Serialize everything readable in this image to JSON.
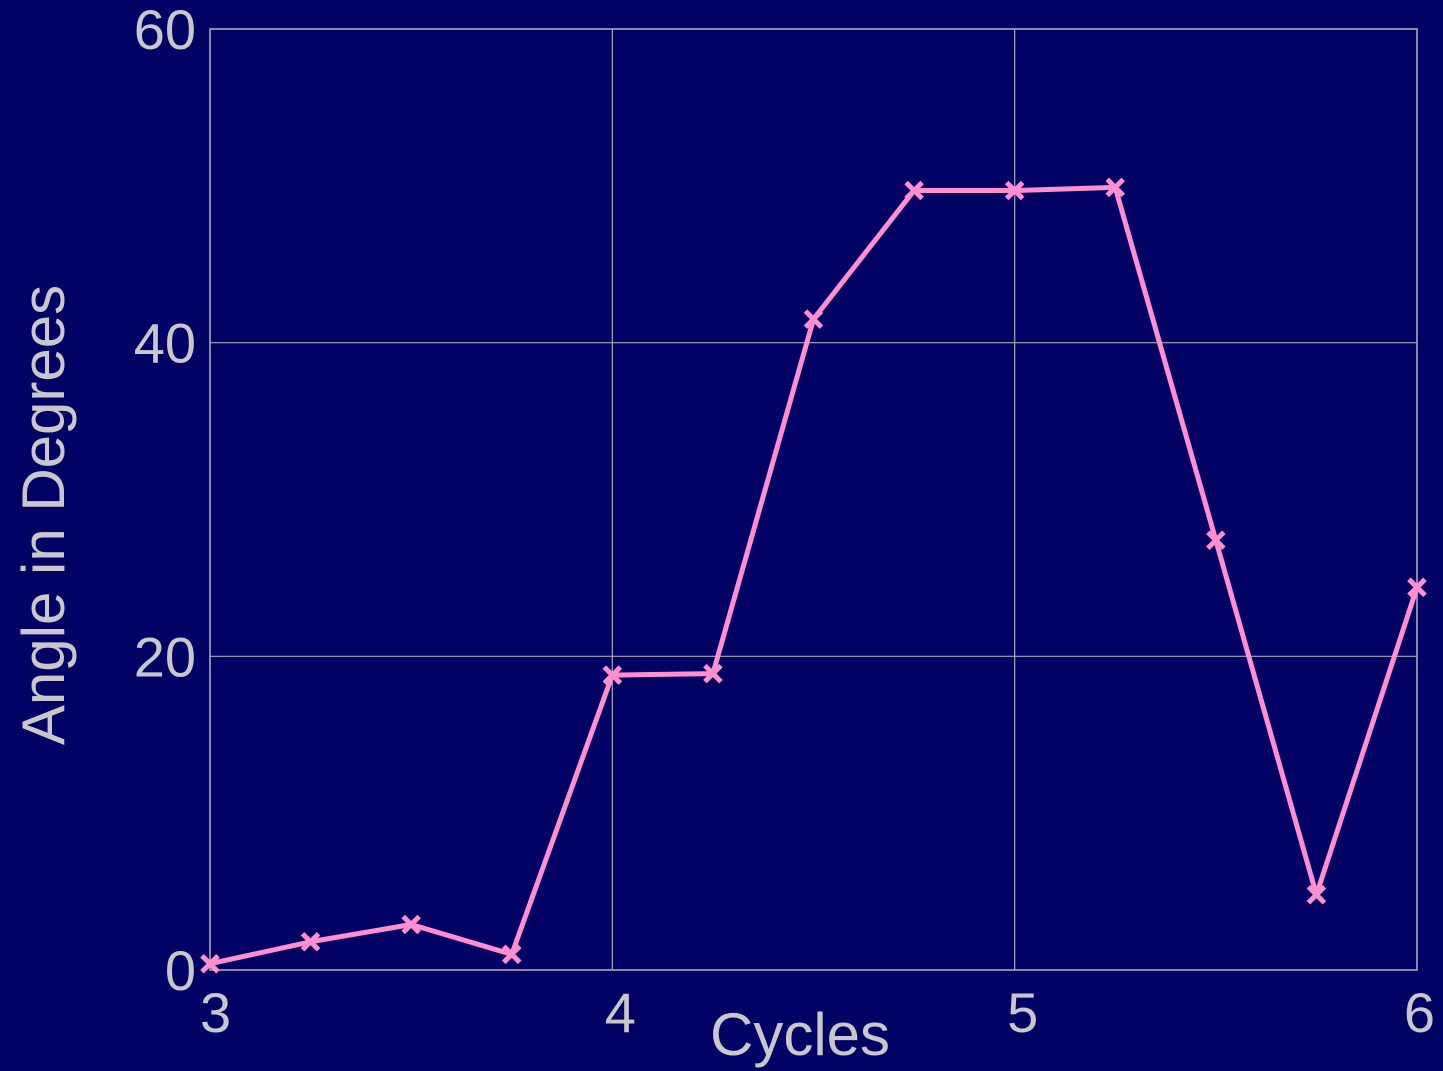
{
  "chart_data": {
    "type": "line",
    "x": [
      3,
      3.25,
      3.5,
      3.75,
      4,
      4.25,
      4.5,
      4.75,
      5,
      5.25,
      5.5,
      5.75,
      6
    ],
    "values": [
      0.4,
      1.8,
      2.9,
      1.0,
      18.8,
      18.9,
      41.5,
      49.7,
      49.7,
      49.9,
      27.4,
      4.8,
      24.4
    ],
    "color": "#ff8fcf",
    "xlabel": "Cycles",
    "ylabel": "Angle in Degrees",
    "xlim": [
      3,
      6
    ],
    "xticks": [
      3,
      4,
      5,
      6
    ],
    "ylim": [
      0,
      60
    ],
    "yticks": [
      0,
      20,
      40,
      60
    ],
    "grid": true
  }
}
